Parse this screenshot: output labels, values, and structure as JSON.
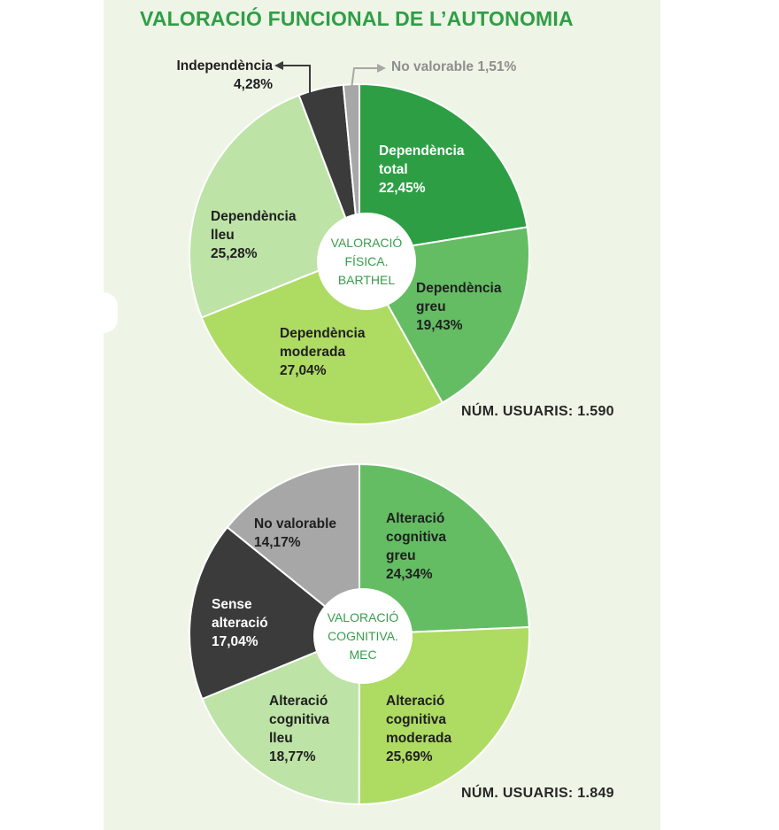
{
  "title": "VALORACIÓ FUNCIONAL DE L’AUTONOMIA",
  "chart_data": [
    {
      "type": "pie",
      "title": "VALORACIÓ FÍSICA. BARTHEL",
      "center_label": [
        "VALORACIÓ",
        "FÍSICA.",
        "BARTHEL"
      ],
      "users_label": "NÚM. USUARIS: 1.590",
      "slices": [
        {
          "name": [
            "Dependència",
            "total"
          ],
          "percent_label": "22,45%",
          "value": 22.45,
          "color": "#2e9e45"
        },
        {
          "name": [
            "Dependència",
            "greu"
          ],
          "percent_label": "19,43%",
          "value": 19.43,
          "color": "#64bd63"
        },
        {
          "name": [
            "Dependència",
            "moderada"
          ],
          "percent_label": "27,04%",
          "value": 27.04,
          "color": "#aedb62"
        },
        {
          "name": [
            "Dependència",
            "lleu"
          ],
          "percent_label": "25,28%",
          "value": 25.28,
          "color": "#bde3a6"
        },
        {
          "name": [
            "Independència"
          ],
          "percent_label": "4,28%",
          "value": 4.28,
          "color": "#3b3b3b"
        },
        {
          "name": [
            "No valorable"
          ],
          "percent_label": "1,51%",
          "value": 1.51,
          "color": "#a7a7a7"
        }
      ]
    },
    {
      "type": "pie",
      "title": "VALORACIÓ COGNITIVA. MEC",
      "center_label": [
        "VALORACIÓ",
        "COGNITIVA.",
        "MEC"
      ],
      "users_label": "NÚM. USUARIS: 1.849",
      "slices": [
        {
          "name": [
            "Alteració",
            "cognitiva",
            "greu"
          ],
          "percent_label": "24,34%",
          "value": 24.34,
          "color": "#64bd63"
        },
        {
          "name": [
            "Alteració",
            "cognitiva",
            "moderada"
          ],
          "percent_label": "25,69%",
          "value": 25.69,
          "color": "#aedb62"
        },
        {
          "name": [
            "Alteració",
            "cognitiva",
            "lleu"
          ],
          "percent_label": "18,77%",
          "value": 18.77,
          "color": "#bde3a6"
        },
        {
          "name": [
            "Sense",
            "alteració"
          ],
          "percent_label": "17,04%",
          "value": 17.04,
          "color": "#3b3b3b"
        },
        {
          "name": [
            "No valorable"
          ],
          "percent_label": "14,17%",
          "value": 14.17,
          "color": "#a7a7a7"
        }
      ]
    }
  ]
}
